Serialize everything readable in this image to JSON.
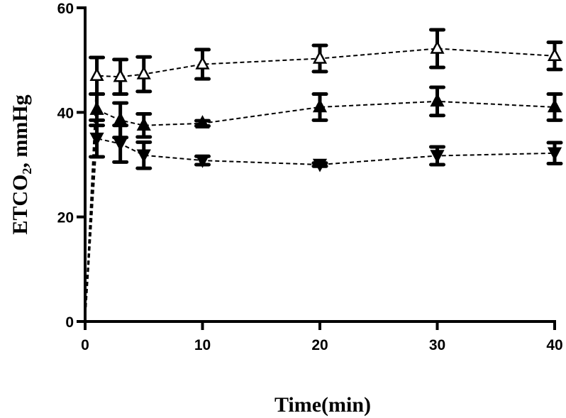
{
  "chart_data": {
    "type": "line",
    "title": "",
    "xlabel": "Time(min)",
    "ylabel": "ETCO₂, mmHg",
    "xlim": [
      0,
      40
    ],
    "ylim": [
      0,
      60
    ],
    "xticks": [
      0,
      10,
      20,
      30,
      40
    ],
    "yticks": [
      0,
      20,
      40,
      60
    ],
    "grid": false,
    "x": [
      0,
      1,
      3,
      5,
      10,
      20,
      30,
      40
    ],
    "series": [
      {
        "marker": "open-triangle-up",
        "values": [
          0,
          47,
          46.8,
          47.3,
          49.2,
          50.3,
          52.2,
          50.8
        ],
        "errors": [
          0,
          3.5,
          3.3,
          3.3,
          2.8,
          2.5,
          3.6,
          2.6
        ]
      },
      {
        "marker": "filled-triangle-up",
        "values": [
          0,
          40.5,
          38.5,
          37.5,
          37.9,
          41,
          42.1,
          41
        ],
        "errors": [
          0,
          3.0,
          3.3,
          2.2,
          0.5,
          2.5,
          2.7,
          2.5
        ]
      },
      {
        "marker": "filled-triangle-down",
        "values": [
          0,
          35,
          34,
          31.8,
          30.8,
          30,
          31.7,
          32.2
        ],
        "errors": [
          0,
          3.5,
          3.5,
          2.5,
          0.8,
          0.3,
          1.7,
          2.0
        ]
      }
    ],
    "colors": {
      "line": "#000000",
      "background": "#ffffff"
    }
  }
}
